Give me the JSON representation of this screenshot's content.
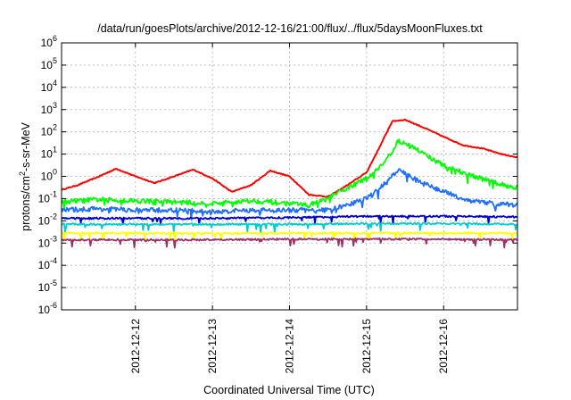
{
  "chart_data": {
    "type": "line",
    "title": "/data/run/goesPlots/archive/2012-12-16/21:00/flux/../flux/5daysMoonFluxes.txt",
    "xlabel": "Coordinated Universal Time (UTC)",
    "ylabel_parts": [
      "protons/cm",
      "2",
      "-s-sr-MeV"
    ],
    "yscale": "log",
    "ylim": [
      1e-06,
      1000000.0
    ],
    "y_ticks": [
      {
        "base": "10",
        "exp": "-6"
      },
      {
        "base": "10",
        "exp": "-5"
      },
      {
        "base": "10",
        "exp": "-4"
      },
      {
        "base": "10",
        "exp": "-3"
      },
      {
        "base": "10",
        "exp": "-2"
      },
      {
        "base": "10",
        "exp": "-1"
      },
      {
        "base": "10",
        "exp": "0"
      },
      {
        "base": "10",
        "exp": "1"
      },
      {
        "base": "10",
        "exp": "2"
      },
      {
        "base": "10",
        "exp": "3"
      },
      {
        "base": "10",
        "exp": "4"
      },
      {
        "base": "10",
        "exp": "5"
      },
      {
        "base": "10",
        "exp": "6"
      }
    ],
    "x_ticks": [
      "2012-12-12",
      "2012-12-13",
      "2012-12-14",
      "2012-12-15",
      "2012-12-16"
    ],
    "xlim": [
      "2012-12-11 01:00",
      "2012-12-16 23:00"
    ],
    "grid": true,
    "series": [
      {
        "color": "#ff0000",
        "x": [
          "2012-12-11 01:00",
          "2012-12-11 06:00",
          "2012-12-11 12:00",
          "2012-12-11 18:00",
          "2012-12-12 00:00",
          "2012-12-12 06:00",
          "2012-12-12 12:00",
          "2012-12-12 18:00",
          "2012-12-13 00:00",
          "2012-12-13 06:00",
          "2012-12-13 12:00",
          "2012-12-13 18:00",
          "2012-12-14 00:00",
          "2012-12-14 06:00",
          "2012-12-14 12:00",
          "2012-12-14 18:00",
          "2012-12-15 00:00",
          "2012-12-15 04:00",
          "2012-12-15 08:00",
          "2012-12-15 12:00",
          "2012-12-15 18:00",
          "2012-12-16 00:00",
          "2012-12-16 06:00",
          "2012-12-16 12:00",
          "2012-12-16 18:00",
          "2012-12-16 23:00"
        ],
        "values": [
          0.25,
          0.4,
          0.9,
          2.2,
          1.0,
          0.5,
          1.0,
          2.0,
          0.8,
          0.2,
          0.4,
          1.8,
          1.0,
          0.15,
          0.12,
          0.4,
          1.5,
          20,
          300,
          350,
          150,
          60,
          25,
          18,
          10,
          7
        ]
      },
      {
        "color": "#00ff00",
        "x": [
          "2012-12-11 01:00",
          "2012-12-11 12:00",
          "2012-12-12 00:00",
          "2012-12-12 12:00",
          "2012-12-13 00:00",
          "2012-12-13 12:00",
          "2012-12-14 00:00",
          "2012-12-14 06:00",
          "2012-12-14 12:00",
          "2012-12-14 18:00",
          "2012-12-15 00:00",
          "2012-12-15 06:00",
          "2012-12-15 10:00",
          "2012-12-15 16:00",
          "2012-12-16 00:00",
          "2012-12-16 08:00",
          "2012-12-16 16:00",
          "2012-12-16 23:00"
        ],
        "values": [
          0.07,
          0.09,
          0.08,
          0.07,
          0.06,
          0.08,
          0.06,
          0.05,
          0.1,
          0.3,
          0.8,
          5,
          40,
          15,
          3,
          1.2,
          0.5,
          0.3
        ]
      },
      {
        "color": "#1e6fff",
        "x": [
          "2012-12-11 01:00",
          "2012-12-11 12:00",
          "2012-12-12 00:00",
          "2012-12-12 12:00",
          "2012-12-13 00:00",
          "2012-12-13 12:00",
          "2012-12-14 00:00",
          "2012-12-14 12:00",
          "2012-12-14 18:00",
          "2012-12-15 00:00",
          "2012-12-15 06:00",
          "2012-12-15 10:00",
          "2012-12-15 16:00",
          "2012-12-16 00:00",
          "2012-12-16 08:00",
          "2012-12-16 16:00",
          "2012-12-16 23:00"
        ],
        "values": [
          0.03,
          0.035,
          0.03,
          0.03,
          0.025,
          0.03,
          0.03,
          0.03,
          0.05,
          0.1,
          0.5,
          2.0,
          0.6,
          0.2,
          0.08,
          0.06,
          0.05
        ]
      },
      {
        "color": "#0000cc",
        "x": [
          "2012-12-11 01:00",
          "2012-12-12 00:00",
          "2012-12-13 00:00",
          "2012-12-14 00:00",
          "2012-12-15 00:00",
          "2012-12-16 00:00",
          "2012-12-16 23:00"
        ],
        "values": [
          0.013,
          0.013,
          0.013,
          0.014,
          0.016,
          0.016,
          0.015
        ]
      },
      {
        "color": "#00cccc",
        "x": [
          "2012-12-11 01:00",
          "2012-12-12 00:00",
          "2012-12-13 00:00",
          "2012-12-14 00:00",
          "2012-12-15 00:00",
          "2012-12-16 00:00",
          "2012-12-16 23:00"
        ],
        "values": [
          0.007,
          0.007,
          0.007,
          0.007,
          0.0075,
          0.0075,
          0.007
        ]
      },
      {
        "color": "#ffff00",
        "x": [
          "2012-12-11 01:00",
          "2012-12-12 00:00",
          "2012-12-13 00:00",
          "2012-12-14 00:00",
          "2012-12-15 00:00",
          "2012-12-16 00:00",
          "2012-12-16 23:00"
        ],
        "values": [
          0.0028,
          0.0028,
          0.0027,
          0.0028,
          0.0028,
          0.0028,
          0.0028
        ]
      },
      {
        "color": "#993366",
        "x": [
          "2012-12-11 01:00",
          "2012-12-12 00:00",
          "2012-12-13 00:00",
          "2012-12-14 00:00",
          "2012-12-15 00:00",
          "2012-12-16 00:00",
          "2012-12-16 23:00"
        ],
        "values": [
          0.0014,
          0.0014,
          0.0014,
          0.0015,
          0.0015,
          0.0015,
          0.0014
        ]
      }
    ]
  }
}
